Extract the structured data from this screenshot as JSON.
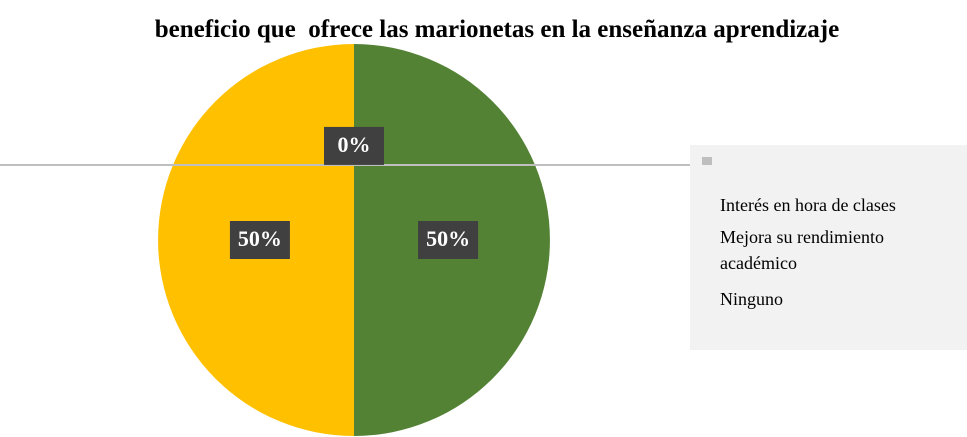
{
  "chart_data": {
    "type": "pie",
    "title": "beneficio que  ofrece las marionetas en la enseñanza aprendizaje",
    "categories": [
      "Interés en hora de clases",
      "Mejora su rendimiento académico",
      "Ninguno"
    ],
    "values": [
      50,
      50,
      0
    ],
    "value_labels": [
      "50%",
      "50%",
      "0%"
    ],
    "colors": [
      "#548235",
      "#ffc000",
      "#a5a5a5"
    ]
  }
}
